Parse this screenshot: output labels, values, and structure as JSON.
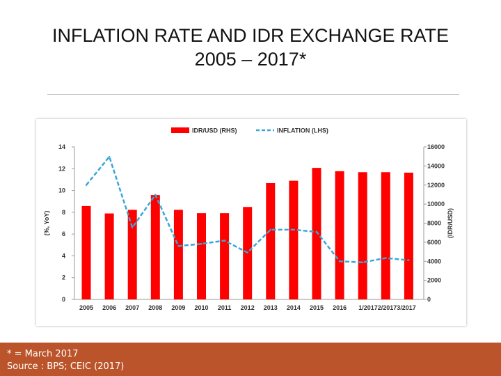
{
  "slide": {
    "title_line1": "INFLATION RATE AND IDR EXCHANGE RATE",
    "title_line2": "2005 – 2017*",
    "footnote": "* = March 2017",
    "source": "Source : BPS; CEIC (2017)"
  },
  "colors": {
    "bars": "#ff0000",
    "line": "#3aa6d6",
    "footer": "#bb542b"
  },
  "chart_data": {
    "type": "bar",
    "categories": [
      "2005",
      "2006",
      "2007",
      "2008",
      "2009",
      "2010",
      "2011",
      "2012",
      "2013",
      "2014",
      "2015",
      "2016",
      "1/2017",
      "2/2017",
      "3/2017"
    ],
    "series": [
      {
        "name": "IDR/USD (RHS)",
        "type": "bar",
        "axis": "right",
        "values": [
          9800,
          9020,
          9400,
          10950,
          9400,
          9050,
          9050,
          9700,
          12200,
          12450,
          13800,
          13450,
          13350,
          13350,
          13300
        ]
      },
      {
        "name": "INFLATION (LHS)",
        "type": "line",
        "axis": "left",
        "style": "dashed",
        "values": [
          10.5,
          13.1,
          6.6,
          9.6,
          4.9,
          5.1,
          5.4,
          4.3,
          6.4,
          6.4,
          6.2,
          3.5,
          3.4,
          3.8,
          3.6
        ]
      }
    ],
    "x_tick_labels": [
      "2005",
      "2006",
      "2007",
      "2008",
      "2009",
      "2010",
      "2011",
      "2012",
      "2013",
      "2014",
      "2015",
      "2016",
      "1/20172/20173/2017"
    ],
    "ylabel_left": "(%, YoY)",
    "ylabel_right": "(IDR/USD)",
    "ylim_left": [
      0,
      14
    ],
    "ylim_right": [
      0,
      16000
    ],
    "yticks_left": [
      "0",
      "2",
      "4",
      "6",
      "8",
      "10",
      "12",
      "14"
    ],
    "yticks_right": [
      "0",
      "2000",
      "4000",
      "6000",
      "8000",
      "10000",
      "12000",
      "14000",
      "16000"
    ],
    "legend_position": "top-center",
    "grid": false
  }
}
